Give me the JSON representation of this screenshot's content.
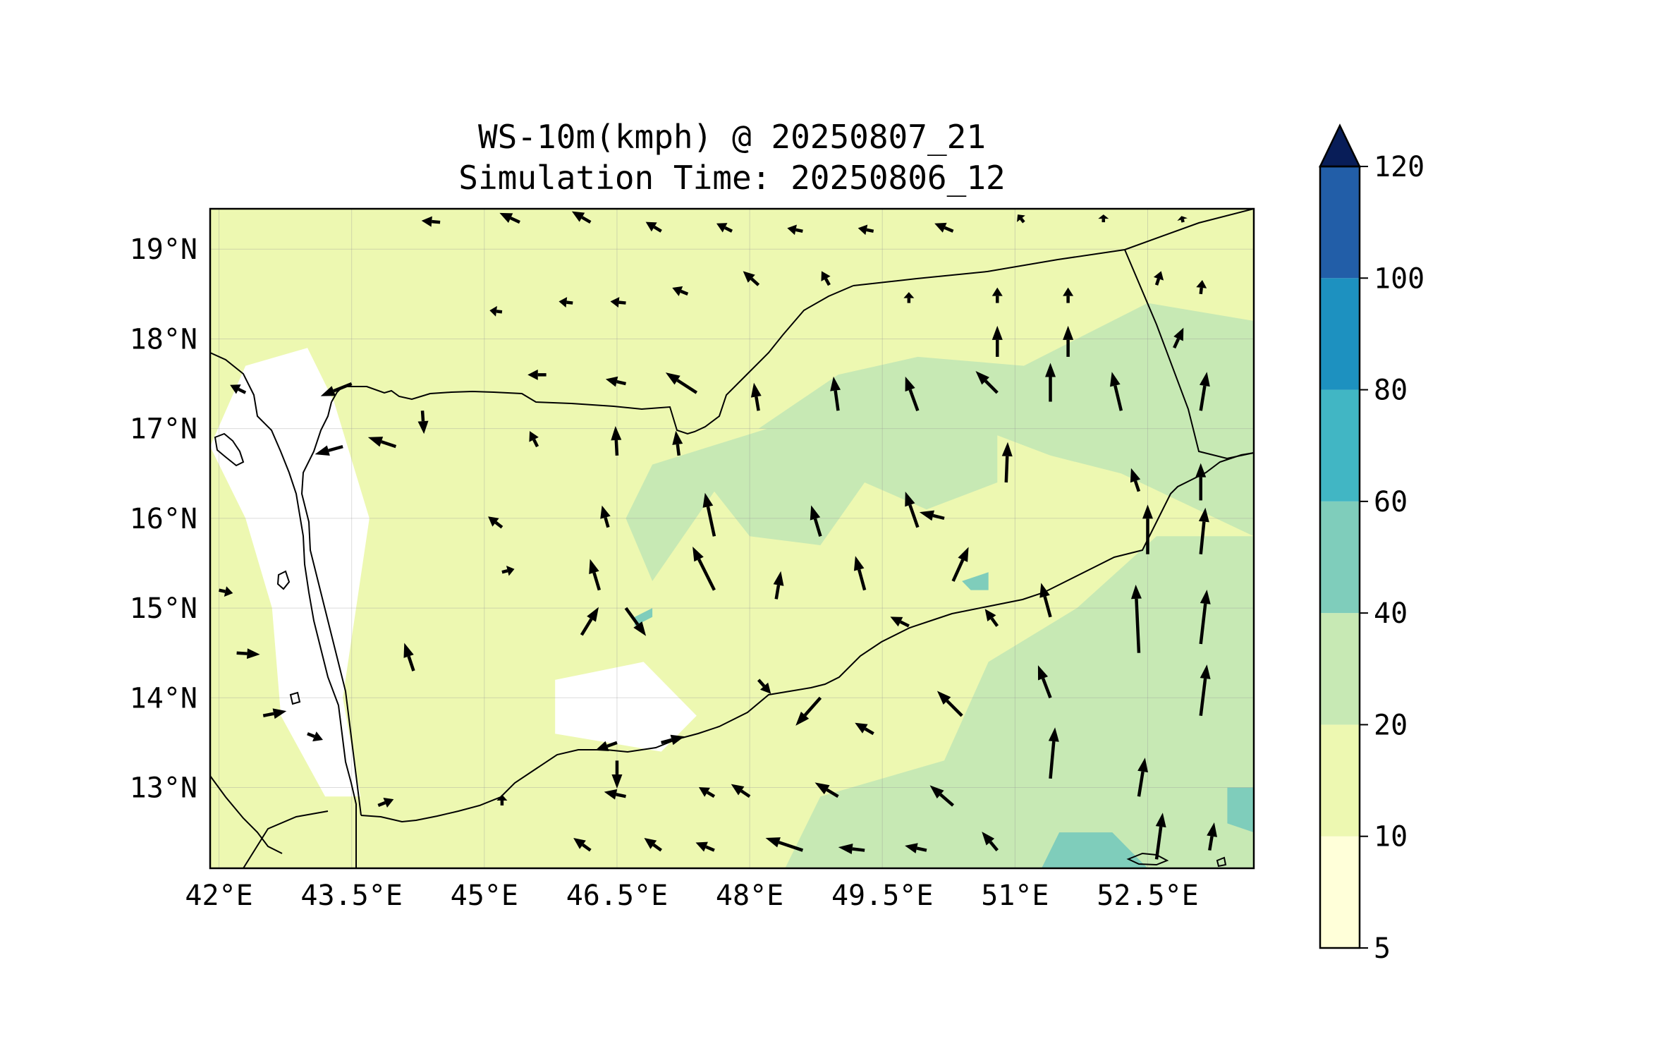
{
  "title_line1": "WS-10m(kmph) @ 20250807_21",
  "title_line2": "Simulation Time: 20250806_12",
  "x_ticks": [
    {
      "label": "42°E",
      "lon": 42
    },
    {
      "label": "43.5°E",
      "lon": 43.5
    },
    {
      "label": "45°E",
      "lon": 45
    },
    {
      "label": "46.5°E",
      "lon": 46.5
    },
    {
      "label": "48°E",
      "lon": 48
    },
    {
      "label": "49.5°E",
      "lon": 49.5
    },
    {
      "label": "51°E",
      "lon": 51
    },
    {
      "label": "52.5°E",
      "lon": 52.5
    }
  ],
  "y_ticks": [
    {
      "label": "19°N",
      "lat": 19
    },
    {
      "label": "18°N",
      "lat": 18
    },
    {
      "label": "17°N",
      "lat": 17
    },
    {
      "label": "16°N",
      "lat": 16
    },
    {
      "label": "15°N",
      "lat": 15
    },
    {
      "label": "14°N",
      "lat": 14
    },
    {
      "label": "13°N",
      "lat": 13
    }
  ],
  "extent": {
    "lon": [
      41.9,
      53.7
    ],
    "lat": [
      12.1,
      19.45
    ]
  },
  "colorbar": {
    "levels": [
      5,
      10,
      20,
      40,
      60,
      80,
      100,
      120
    ],
    "labels": [
      "5",
      "10",
      "20",
      "40",
      "60",
      "80",
      "100",
      "120"
    ],
    "colors": [
      "#ffffd9",
      "#edf8b1",
      "#c7e9b4",
      "#7fcdbb",
      "#41b6c4",
      "#1d91c0",
      "#225ea8",
      "#081d58"
    ],
    "extend": "max"
  },
  "colors": {
    "land_base": "#edf8b1",
    "calm": "#ffffff",
    "moderate": "#c7e9b4",
    "strong": "#7fcdbb",
    "arrow": "#000000",
    "coast": "#000000"
  },
  "chart_data": {
    "type": "heatmap",
    "field": "10 m wind speed (kmph) with wind vectors",
    "lon_range": [
      41.9,
      53.7
    ],
    "lat_range": [
      12.1,
      19.45
    ],
    "speed_regions": [
      {
        "name": "calm-red-sea-coast",
        "class": "calm",
        "polygon": [
          [
            42.3,
            17.7
          ],
          [
            43.0,
            17.9
          ],
          [
            43.3,
            17.3
          ],
          [
            43.7,
            16.0
          ],
          [
            43.4,
            14.0
          ],
          [
            43.6,
            12.9
          ],
          [
            43.2,
            12.9
          ],
          [
            42.7,
            13.8
          ],
          [
            42.6,
            15.0
          ],
          [
            42.3,
            16.0
          ],
          [
            41.9,
            16.8
          ]
        ]
      },
      {
        "name": "calm-central-west",
        "class": "calm",
        "polygon": [
          [
            45.8,
            13.6
          ],
          [
            47.0,
            13.4
          ],
          [
            47.4,
            13.8
          ],
          [
            46.8,
            14.4
          ],
          [
            45.8,
            14.2
          ]
        ]
      },
      {
        "name": "moderate-central-plateau",
        "class": "moderate",
        "polygon": [
          [
            46.9,
            15.3
          ],
          [
            47.6,
            16.3
          ],
          [
            48.0,
            15.8
          ],
          [
            48.8,
            15.7
          ],
          [
            49.3,
            16.4
          ],
          [
            50.0,
            16.1
          ],
          [
            50.8,
            16.4
          ],
          [
            50.8,
            17.1
          ],
          [
            49.5,
            17.3
          ],
          [
            48.2,
            17.0
          ],
          [
            46.9,
            16.6
          ],
          [
            46.6,
            16.0
          ]
        ]
      },
      {
        "name": "moderate-rub-al-khali",
        "class": "moderate",
        "polygon": [
          [
            48.1,
            17.0
          ],
          [
            49.0,
            17.6
          ],
          [
            49.9,
            17.8
          ],
          [
            51.1,
            17.7
          ],
          [
            52.5,
            18.4
          ],
          [
            53.7,
            18.2
          ],
          [
            53.7,
            15.8
          ],
          [
            52.2,
            16.5
          ],
          [
            51.4,
            16.7
          ],
          [
            50.6,
            17.0
          ]
        ]
      },
      {
        "name": "moderate-arabian-sea",
        "class": "moderate",
        "polygon": [
          [
            50.7,
            14.4
          ],
          [
            51.7,
            15.0
          ],
          [
            52.6,
            15.8
          ],
          [
            53.7,
            15.8
          ],
          [
            53.7,
            12.1
          ],
          [
            48.4,
            12.1
          ],
          [
            48.8,
            12.9
          ],
          [
            50.2,
            13.3
          ]
        ]
      },
      {
        "name": "strong-socotra-sea",
        "class": "strong",
        "polygon": [
          [
            51.3,
            12.1
          ],
          [
            51.5,
            12.5
          ],
          [
            52.1,
            12.5
          ],
          [
            52.4,
            12.2
          ],
          [
            52.5,
            12.1
          ]
        ]
      },
      {
        "name": "strong-east-edge",
        "class": "strong",
        "polygon": [
          [
            53.4,
            13.0
          ],
          [
            53.7,
            13.0
          ],
          [
            53.7,
            12.5
          ],
          [
            53.4,
            12.6
          ]
        ]
      },
      {
        "name": "strong-patch-south",
        "class": "strong",
        "polygon": [
          [
            46.7,
            14.8
          ],
          [
            46.9,
            14.9
          ],
          [
            46.9,
            15.0
          ],
          [
            46.7,
            14.9
          ]
        ]
      },
      {
        "name": "strong-patch-east",
        "class": "strong",
        "polygon": [
          [
            50.4,
            15.3
          ],
          [
            50.7,
            15.4
          ],
          [
            50.7,
            15.2
          ],
          [
            50.5,
            15.2
          ]
        ]
      }
    ],
    "wind_vectors": [
      {
        "lon": 42.3,
        "lat": 17.4,
        "u": -1.0,
        "v": 0.5
      },
      {
        "lon": 43.5,
        "lat": 17.5,
        "u": -2.0,
        "v": -0.8
      },
      {
        "lon": 44.3,
        "lat": 17.2,
        "u": 0.1,
        "v": -1.5
      },
      {
        "lon": 45.7,
        "lat": 17.6,
        "u": -1.2,
        "v": 0.0
      },
      {
        "lon": 46.6,
        "lat": 17.5,
        "u": -1.3,
        "v": 0.3
      },
      {
        "lon": 47.4,
        "lat": 17.4,
        "u": -2.0,
        "v": 1.3
      },
      {
        "lon": 48.1,
        "lat": 17.2,
        "u": -0.3,
        "v": 1.8
      },
      {
        "lon": 49.0,
        "lat": 17.2,
        "u": -0.3,
        "v": 2.2
      },
      {
        "lon": 49.9,
        "lat": 17.2,
        "u": -0.8,
        "v": 2.2
      },
      {
        "lon": 50.8,
        "lat": 17.4,
        "u": -1.4,
        "v": 1.4
      },
      {
        "lon": 51.4,
        "lat": 17.3,
        "u": 0.0,
        "v": 2.5
      },
      {
        "lon": 52.2,
        "lat": 17.2,
        "u": -0.6,
        "v": 2.5
      },
      {
        "lon": 53.1,
        "lat": 17.2,
        "u": 0.4,
        "v": 2.5
      },
      {
        "lon": 43.4,
        "lat": 16.8,
        "u": -1.8,
        "v": -0.5
      },
      {
        "lon": 44.0,
        "lat": 16.8,
        "u": -1.8,
        "v": 0.6
      },
      {
        "lon": 45.6,
        "lat": 16.8,
        "u": -0.5,
        "v": 1.0
      },
      {
        "lon": 46.5,
        "lat": 16.7,
        "u": -0.1,
        "v": 1.9
      },
      {
        "lon": 47.2,
        "lat": 16.7,
        "u": -0.2,
        "v": 1.6
      },
      {
        "lon": 50.9,
        "lat": 16.4,
        "u": 0.1,
        "v": 2.6
      },
      {
        "lon": 52.4,
        "lat": 16.3,
        "u": -0.5,
        "v": 1.5
      },
      {
        "lon": 53.1,
        "lat": 16.2,
        "u": 0.0,
        "v": 2.4
      },
      {
        "lon": 46.4,
        "lat": 15.9,
        "u": -0.4,
        "v": 1.4
      },
      {
        "lon": 47.6,
        "lat": 15.8,
        "u": -0.6,
        "v": 2.8
      },
      {
        "lon": 48.8,
        "lat": 15.8,
        "u": -0.6,
        "v": 2.0
      },
      {
        "lon": 49.9,
        "lat": 15.9,
        "u": -0.8,
        "v": 2.3
      },
      {
        "lon": 50.2,
        "lat": 16.0,
        "u": -1.6,
        "v": 0.4
      },
      {
        "lon": 52.5,
        "lat": 15.6,
        "u": 0.0,
        "v": 3.2
      },
      {
        "lon": 53.1,
        "lat": 15.6,
        "u": 0.3,
        "v": 3.0
      },
      {
        "lon": 45.2,
        "lat": 15.9,
        "u": -0.9,
        "v": 0.7
      },
      {
        "lon": 46.3,
        "lat": 15.2,
        "u": -0.6,
        "v": 2.0
      },
      {
        "lon": 47.6,
        "lat": 15.2,
        "u": -1.4,
        "v": 2.8
      },
      {
        "lon": 48.3,
        "lat": 15.1,
        "u": 0.3,
        "v": 1.8
      },
      {
        "lon": 49.3,
        "lat": 15.2,
        "u": -0.6,
        "v": 2.2
      },
      {
        "lon": 50.3,
        "lat": 15.3,
        "u": 1.0,
        "v": 2.2
      },
      {
        "lon": 51.4,
        "lat": 14.9,
        "u": -0.6,
        "v": 2.2
      },
      {
        "lon": 52.4,
        "lat": 14.5,
        "u": -0.2,
        "v": 4.4
      },
      {
        "lon": 53.1,
        "lat": 14.6,
        "u": 0.4,
        "v": 3.5
      },
      {
        "lon": 42.0,
        "lat": 15.2,
        "u": 0.9,
        "v": -0.2
      },
      {
        "lon": 45.2,
        "lat": 15.4,
        "u": 0.8,
        "v": 0.2
      },
      {
        "lon": 46.1,
        "lat": 14.7,
        "u": 1.1,
        "v": 1.8
      },
      {
        "lon": 46.6,
        "lat": 15.0,
        "u": 1.3,
        "v": -1.8
      },
      {
        "lon": 49.8,
        "lat": 14.8,
        "u": -1.2,
        "v": 0.6
      },
      {
        "lon": 50.8,
        "lat": 14.8,
        "u": -0.8,
        "v": 1.1
      },
      {
        "lon": 51.4,
        "lat": 14.0,
        "u": -0.8,
        "v": 2.1
      },
      {
        "lon": 53.1,
        "lat": 13.8,
        "u": 0.4,
        "v": 3.3
      },
      {
        "lon": 42.2,
        "lat": 14.5,
        "u": 1.5,
        "v": -0.1
      },
      {
        "lon": 42.5,
        "lat": 13.8,
        "u": 1.5,
        "v": 0.3
      },
      {
        "lon": 43.0,
        "lat": 13.6,
        "u": 1.0,
        "v": -0.4
      },
      {
        "lon": 44.2,
        "lat": 14.3,
        "u": -0.6,
        "v": 1.8
      },
      {
        "lon": 46.5,
        "lat": 13.5,
        "u": -1.4,
        "v": -0.5
      },
      {
        "lon": 46.5,
        "lat": 13.3,
        "u": 0.0,
        "v": -1.8
      },
      {
        "lon": 47.0,
        "lat": 13.5,
        "u": 1.5,
        "v": 0.4
      },
      {
        "lon": 48.1,
        "lat": 14.2,
        "u": 0.8,
        "v": -0.9
      },
      {
        "lon": 48.8,
        "lat": 14.0,
        "u": -1.6,
        "v": -1.8
      },
      {
        "lon": 49.4,
        "lat": 13.6,
        "u": -1.2,
        "v": 0.7
      },
      {
        "lon": 50.4,
        "lat": 13.8,
        "u": -1.6,
        "v": 1.6
      },
      {
        "lon": 51.4,
        "lat": 13.1,
        "u": 0.3,
        "v": 3.3
      },
      {
        "lon": 52.4,
        "lat": 12.9,
        "u": 0.4,
        "v": 2.5
      },
      {
        "lon": 43.8,
        "lat": 12.8,
        "u": 1.0,
        "v": 0.4
      },
      {
        "lon": 45.2,
        "lat": 12.8,
        "u": 0.0,
        "v": 0.7
      },
      {
        "lon": 46.6,
        "lat": 12.9,
        "u": -1.4,
        "v": 0.3
      },
      {
        "lon": 47.6,
        "lat": 12.9,
        "u": -1.0,
        "v": 0.6
      },
      {
        "lon": 48.0,
        "lat": 12.9,
        "u": -1.2,
        "v": 0.8
      },
      {
        "lon": 49.0,
        "lat": 12.9,
        "u": -1.5,
        "v": 0.9
      },
      {
        "lon": 50.3,
        "lat": 12.8,
        "u": -1.5,
        "v": 1.3
      },
      {
        "lon": 50.8,
        "lat": 12.3,
        "u": -1.0,
        "v": 1.2
      },
      {
        "lon": 52.6,
        "lat": 12.2,
        "u": 0.4,
        "v": 3.0
      },
      {
        "lon": 53.2,
        "lat": 12.3,
        "u": 0.3,
        "v": 1.8
      },
      {
        "lon": 46.2,
        "lat": 12.3,
        "u": -1.1,
        "v": 0.8
      },
      {
        "lon": 47.0,
        "lat": 12.3,
        "u": -1.1,
        "v": 0.8
      },
      {
        "lon": 47.6,
        "lat": 12.3,
        "u": -1.2,
        "v": 0.5
      },
      {
        "lon": 48.6,
        "lat": 12.3,
        "u": -2.4,
        "v": 0.8
      },
      {
        "lon": 49.3,
        "lat": 12.3,
        "u": -1.7,
        "v": 0.2
      },
      {
        "lon": 50.0,
        "lat": 12.3,
        "u": -1.4,
        "v": 0.3
      },
      {
        "lon": 44.5,
        "lat": 19.3,
        "u": -1.2,
        "v": 0.1
      },
      {
        "lon": 45.4,
        "lat": 19.3,
        "u": -1.3,
        "v": 0.6
      },
      {
        "lon": 46.2,
        "lat": 19.3,
        "u": -1.2,
        "v": 0.7
      },
      {
        "lon": 47.0,
        "lat": 19.2,
        "u": -1.0,
        "v": 0.6
      },
      {
        "lon": 47.8,
        "lat": 19.2,
        "u": -1.0,
        "v": 0.5
      },
      {
        "lon": 48.6,
        "lat": 19.2,
        "u": -1.0,
        "v": 0.2
      },
      {
        "lon": 49.4,
        "lat": 19.2,
        "u": -1.0,
        "v": 0.2
      },
      {
        "lon": 50.3,
        "lat": 19.2,
        "u": -1.2,
        "v": 0.5
      },
      {
        "lon": 51.1,
        "lat": 19.3,
        "u": -0.4,
        "v": 0.5
      },
      {
        "lon": 52.0,
        "lat": 19.3,
        "u": 0.0,
        "v": 0.5
      },
      {
        "lon": 52.9,
        "lat": 19.3,
        "u": -0.1,
        "v": 0.4
      },
      {
        "lon": 45.2,
        "lat": 18.3,
        "u": -0.8,
        "v": 0.1
      },
      {
        "lon": 46.0,
        "lat": 18.4,
        "u": -0.9,
        "v": 0.1
      },
      {
        "lon": 46.6,
        "lat": 18.4,
        "u": -1.0,
        "v": 0.1
      },
      {
        "lon": 47.3,
        "lat": 18.5,
        "u": -1.0,
        "v": 0.4
      },
      {
        "lon": 48.1,
        "lat": 18.6,
        "u": -1.0,
        "v": 0.9
      },
      {
        "lon": 48.9,
        "lat": 18.6,
        "u": -0.5,
        "v": 0.9
      },
      {
        "lon": 49.8,
        "lat": 18.4,
        "u": 0.0,
        "v": 0.7
      },
      {
        "lon": 50.8,
        "lat": 18.4,
        "u": 0.0,
        "v": 1.0
      },
      {
        "lon": 51.6,
        "lat": 18.4,
        "u": 0.0,
        "v": 1.0
      },
      {
        "lon": 52.6,
        "lat": 18.6,
        "u": 0.3,
        "v": 0.9
      },
      {
        "lon": 53.1,
        "lat": 18.5,
        "u": 0.1,
        "v": 0.9
      },
      {
        "lon": 50.8,
        "lat": 17.8,
        "u": 0.0,
        "v": 2.0
      },
      {
        "lon": 51.6,
        "lat": 17.8,
        "u": 0.0,
        "v": 2.0
      },
      {
        "lon": 52.8,
        "lat": 17.9,
        "u": 0.6,
        "v": 1.3
      }
    ]
  }
}
